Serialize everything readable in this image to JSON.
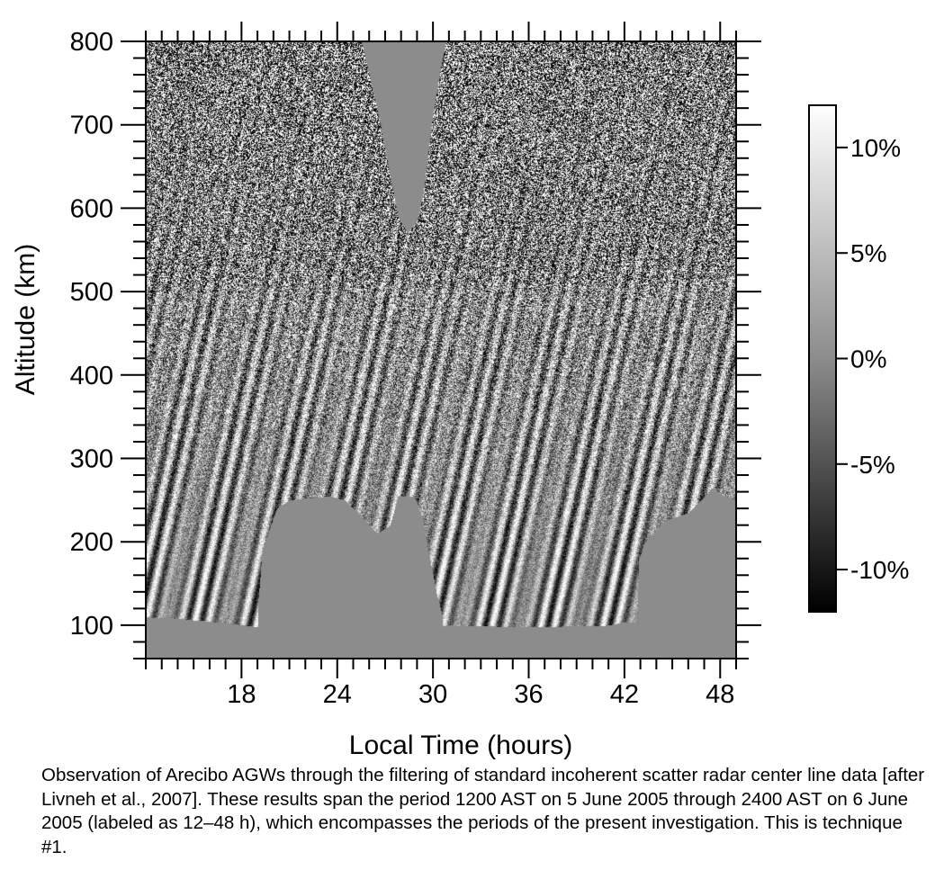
{
  "chart_data": {
    "type": "heatmap",
    "title": "",
    "xlabel": "Local Time (hours)",
    "ylabel": "Altitude (km)",
    "xlim": [
      12,
      49
    ],
    "ylim": [
      60,
      800
    ],
    "x_ticks": [
      18,
      24,
      30,
      36,
      42,
      48
    ],
    "y_ticks": [
      100,
      200,
      300,
      400,
      500,
      600,
      700,
      800
    ],
    "colorscale": {
      "type": "grayscale",
      "min": -12,
      "max": 12,
      "unit": "%",
      "ticks": [
        10,
        5,
        0,
        -5,
        -10
      ],
      "tick_labels": [
        "10%",
        "5%",
        "0%",
        "-5%",
        "-10%"
      ]
    },
    "masked_value_color": "#8c8c8c",
    "lower_data_boundary_km": [
      {
        "x": 12.0,
        "y": 110
      },
      {
        "x": 14.0,
        "y": 108
      },
      {
        "x": 17.0,
        "y": 103
      },
      {
        "x": 19.0,
        "y": 98
      },
      {
        "x": 25.0,
        "y": 95
      },
      {
        "x": 27.0,
        "y": 95
      },
      {
        "x": 29.0,
        "y": 95
      },
      {
        "x": 31.0,
        "y": 100
      },
      {
        "x": 36.0,
        "y": 98
      },
      {
        "x": 41.0,
        "y": 100
      },
      {
        "x": 42.0,
        "y": 104
      },
      {
        "x": 49.0,
        "y": 100
      }
    ],
    "night_gap_regions": [
      {
        "name": "",
        "boundary": [
          {
            "x": 19.0,
            "y": 120
          },
          {
            "x": 19.3,
            "y": 190
          },
          {
            "x": 20.2,
            "y": 240
          },
          {
            "x": 21.0,
            "y": 250
          },
          {
            "x": 23.5,
            "y": 255
          },
          {
            "x": 24.5,
            "y": 250
          },
          {
            "x": 25.5,
            "y": 230
          },
          {
            "x": 26.5,
            "y": 210
          },
          {
            "x": 27.3,
            "y": 220
          },
          {
            "x": 27.8,
            "y": 255
          },
          {
            "x": 28.8,
            "y": 255
          },
          {
            "x": 29.3,
            "y": 230
          },
          {
            "x": 29.7,
            "y": 190
          },
          {
            "x": 30.2,
            "y": 140
          },
          {
            "x": 30.6,
            "y": 110
          }
        ]
      },
      {
        "name": "",
        "boundary": [
          {
            "x": 42.8,
            "y": 115
          },
          {
            "x": 42.9,
            "y": 180
          },
          {
            "x": 43.3,
            "y": 200
          },
          {
            "x": 44.5,
            "y": 225
          },
          {
            "x": 46.0,
            "y": 235
          },
          {
            "x": 46.8,
            "y": 250
          },
          {
            "x": 47.5,
            "y": 265
          },
          {
            "x": 48.2,
            "y": 255
          },
          {
            "x": 49.0,
            "y": 250
          }
        ]
      },
      {
        "name": "",
        "boundary": [
          {
            "x": 25.5,
            "y": 800
          },
          {
            "x": 26.0,
            "y": 760
          },
          {
            "x": 26.7,
            "y": 700
          },
          {
            "x": 27.3,
            "y": 640
          },
          {
            "x": 27.8,
            "y": 590
          },
          {
            "x": 28.4,
            "y": 570
          },
          {
            "x": 29.0,
            "y": 585
          },
          {
            "x": 29.4,
            "y": 620
          },
          {
            "x": 29.9,
            "y": 700
          },
          {
            "x": 30.4,
            "y": 760
          },
          {
            "x": 30.8,
            "y": 800
          }
        ]
      }
    ]
  },
  "caption": "Observation of Arecibo AGWs through the filtering of standard incoherent scatter radar center line data [after Livneh et al., 2007]. These results span the period 1200 AST on 5 June 2005 through 2400 AST on 6 June 2005 (labeled as 12–48 h), which encompasses the periods of the present investigation.  This is technique #1."
}
